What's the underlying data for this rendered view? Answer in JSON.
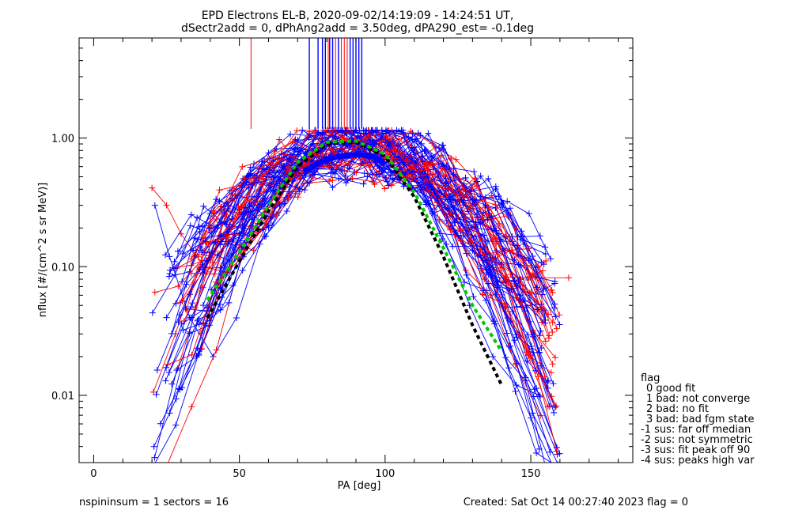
{
  "chart_data": {
    "type": "line",
    "title_line1": "EPD Electrons EL-B, 2020-09-02/14:19:09 - 14:24:51 UT,",
    "title_line2": "dSectr2add = 0, dPhAng2add = 3.50deg, dPA290_est=  -0.1deg",
    "xlabel": "PA [deg]",
    "ylabel": "nflux [#/(cm^2 s sr MeV)]",
    "xlim": [
      -5,
      185
    ],
    "ylim": [
      0.003,
      6.0
    ],
    "yscale": "log",
    "xticks": [
      0,
      50,
      100,
      150
    ],
    "xtick_labels": [
      "0",
      "50",
      "100",
      "150"
    ],
    "yticks": [
      0.01,
      0.1,
      1.0
    ],
    "ytick_labels": [
      "0.01",
      "0.10",
      "1.00"
    ],
    "series_colors": {
      "red": "#ff0000",
      "blue": "#0000ff",
      "fit_green": "#00cc00",
      "fit_black": "#000000"
    },
    "red_curves_sample": [
      {
        "x": [
          20,
          25,
          30,
          38,
          46,
          54,
          62,
          70,
          78,
          86,
          94,
          102,
          110,
          118,
          126,
          134,
          142,
          150,
          157
        ],
        "y": [
          0.41,
          0.3,
          0.18,
          0.1,
          0.09,
          0.18,
          0.35,
          0.6,
          0.85,
          1.0,
          0.98,
          0.9,
          0.6,
          0.32,
          0.16,
          0.08,
          0.04,
          0.02,
          0.015
        ]
      },
      {
        "x": [
          110,
          125,
          146,
          163
        ],
        "y": [
          0.6,
          0.17,
          0.082,
          0.082
        ]
      }
    ],
    "blue_curves_sample": [
      {
        "x": [
          21,
          26,
          33,
          41,
          49,
          57,
          65,
          73,
          81,
          89,
          97,
          105,
          113,
          121,
          129,
          137,
          145,
          153
        ],
        "y": [
          0.3,
          0.12,
          0.04,
          0.02,
          0.04,
          0.15,
          0.4,
          0.75,
          0.9,
          0.95,
          0.9,
          0.7,
          0.4,
          0.15,
          0.05,
          0.02,
          0.012,
          0.01
        ]
      }
    ],
    "fit_green": {
      "x": [
        39,
        50,
        60,
        70,
        80,
        90,
        100,
        110,
        120,
        130,
        140
      ],
      "y": [
        0.055,
        0.13,
        0.3,
        0.65,
        0.93,
        0.95,
        0.75,
        0.38,
        0.14,
        0.05,
        0.022
      ]
    },
    "fit_black": {
      "x": [
        39,
        50,
        60,
        70,
        80,
        90,
        100,
        110,
        120,
        130,
        140
      ],
      "y": [
        0.04,
        0.11,
        0.27,
        0.6,
        0.9,
        0.93,
        0.72,
        0.35,
        0.12,
        0.035,
        0.012
      ]
    },
    "vertical_lines_red_x": [
      54,
      80.5,
      83,
      85,
      86,
      87
    ],
    "vertical_lines_blue_x": [
      74,
      77,
      78.5,
      79.5,
      81,
      82,
      84,
      88,
      89,
      90,
      91,
      92
    ],
    "legend": {
      "title": "flag",
      "items": [
        "0 good fit",
        "1 bad: not converge",
        "2 bad: no fit",
        "3 bad: bad fgm state",
        "-1 sus: far off median",
        "-2 sus: not symmetric",
        "-3 sus: fit peak off 90",
        "-4 sus: peaks high var"
      ]
    },
    "footer_left": "nspininsum =  1  sectors = 16",
    "footer_right": "Created: Sat Oct 14 00:27:40 2023   flag = 0"
  }
}
